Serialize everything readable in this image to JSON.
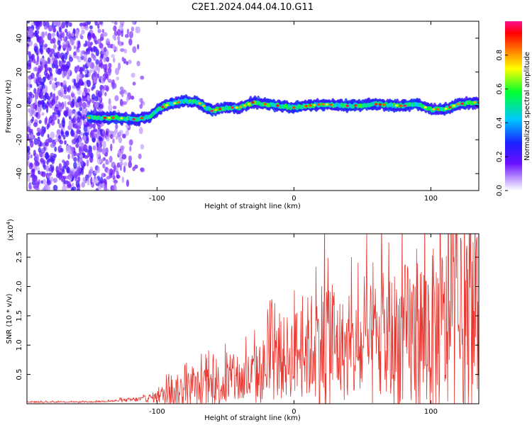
{
  "title": "C2E1.2024.044.04.10.G11",
  "chart_data": [
    {
      "type": "heatmap",
      "xlabel": "Height of straight line (km)",
      "ylabel": "Frequency (Hz)",
      "xlim": [
        -195,
        135
      ],
      "ylim": [
        -50,
        50
      ],
      "xticks": [
        -100,
        0,
        100
      ],
      "yticks": [
        -40,
        -20,
        0,
        20,
        40
      ],
      "colorbar": {
        "label": "Normalized spectral amplitude",
        "range": [
          0,
          1
        ],
        "ticks": [
          "0.0",
          "0.2",
          "0.4",
          "0.6",
          "0.8"
        ],
        "colors": [
          "#ffffff",
          "#a05cff",
          "#2000ff",
          "#00c8ff",
          "#00ff40",
          "#ffff00",
          "#ff2000",
          "#ff1090"
        ]
      },
      "ridge": {
        "description_values_x": [
          -150,
          -130,
          -115,
          -105,
          -95,
          -80,
          -70,
          -60,
          -50,
          -40,
          -30,
          -20,
          -10,
          0,
          10,
          20,
          40,
          60,
          80,
          90,
          100,
          110,
          120,
          130
        ],
        "frequency_hz": [
          -7,
          -7,
          -8,
          -6,
          0,
          3,
          2,
          -3,
          -1,
          -1,
          2,
          1,
          0,
          -1,
          0,
          1,
          0,
          1,
          0,
          1,
          -2,
          -2,
          1,
          2
        ]
      }
    },
    {
      "type": "line",
      "xlabel": "Height of straight line (km)",
      "ylabel": "SNR (10 * v/v)",
      "multiplier_label": "(x10",
      "multiplier_exp": "4",
      "xlim": [
        -195,
        135
      ],
      "ylim": [
        0,
        2.9
      ],
      "xticks": [
        -100,
        0,
        100
      ],
      "yticks": [
        "0.5",
        "1.0",
        "1.5",
        "2.0",
        "2.5"
      ],
      "color": "#e8352e",
      "envelope": {
        "x": [
          -195,
          -150,
          -130,
          -110,
          -100,
          -90,
          -80,
          -70,
          -60,
          -50,
          -40,
          -30,
          -20,
          -10,
          0,
          10,
          20,
          27,
          30,
          40,
          50,
          60,
          70,
          80,
          90,
          100,
          110,
          120,
          128,
          133
        ],
        "mean": [
          0.03,
          0.03,
          0.05,
          0.08,
          0.12,
          0.2,
          0.25,
          0.28,
          0.3,
          0.35,
          0.38,
          0.45,
          0.6,
          0.75,
          0.85,
          0.95,
          1.05,
          1.15,
          1.0,
          0.85,
          0.9,
          1.0,
          1.05,
          1.1,
          1.15,
          1.2,
          1.25,
          1.3,
          1.35,
          1.4
        ],
        "amplitude": [
          0.01,
          0.01,
          0.02,
          0.05,
          0.1,
          0.25,
          0.3,
          0.3,
          0.35,
          0.4,
          0.4,
          0.5,
          0.6,
          0.7,
          0.75,
          0.9,
          1.1,
          1.5,
          1.0,
          0.8,
          1.0,
          1.1,
          1.2,
          1.3,
          1.4,
          1.45,
          1.5,
          1.5,
          1.5,
          1.45
        ]
      }
    }
  ]
}
